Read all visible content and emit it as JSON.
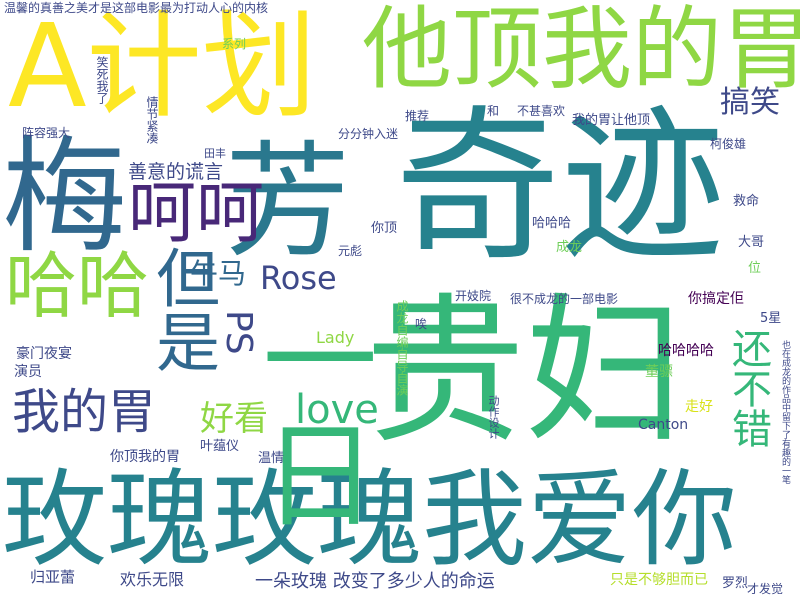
{
  "word_cloud": {
    "background": "#ffffff",
    "palette": [
      "#fde725",
      "#b5de2b",
      "#6ece58",
      "#35b779",
      "#1f9e89",
      "#26828e",
      "#31688e",
      "#3e4989",
      "#482878",
      "#440154"
    ],
    "words": [
      {
        "text": "奇迹",
        "color": "#26828e"
      },
      {
        "text": "贵妇",
        "color": "#35b779"
      },
      {
        "text": "玫瑰玫瑰我爱你",
        "color": "#26828e"
      },
      {
        "text": "梅",
        "color": "#31688e"
      },
      {
        "text": "A计划",
        "color": "#fde725"
      },
      {
        "text": "他顶我的胃",
        "color": "#8fd744"
      },
      {
        "text": "一日",
        "color": "#35b779"
      },
      {
        "text": "芳",
        "color": "#2a788e"
      },
      {
        "text": "呵呵",
        "color": "#482878"
      },
      {
        "text": "哈哈",
        "color": "#8fd744"
      },
      {
        "text": "我的胃",
        "color": "#3e4989"
      },
      {
        "text": "但是",
        "color": "#31688e"
      },
      {
        "text": "Rose",
        "color": "#3e4989"
      },
      {
        "text": "午马",
        "color": "#31688e"
      },
      {
        "text": "PS",
        "color": "#3e4989"
      },
      {
        "text": "love",
        "color": "#35b779"
      },
      {
        "text": "好看",
        "color": "#8fd744"
      },
      {
        "text": "还不错",
        "color": "#35b779"
      },
      {
        "text": "搞笑",
        "color": "#3e4989"
      },
      {
        "text": "善意的谎言",
        "color": "#3e4989"
      },
      {
        "text": "温馨的真善之美才是这部电影最为打动人心的内核",
        "color": "#3e4989"
      },
      {
        "text": "一朵玫瑰 改变了多少人的命运",
        "color": "#3e4989"
      },
      {
        "text": "只是不够胆而已",
        "color": "#b5de2b"
      },
      {
        "text": "罗烈",
        "color": "#3e4989"
      },
      {
        "text": "才发觉",
        "color": "#3e4989"
      },
      {
        "text": "欢乐无限",
        "color": "#3e4989"
      },
      {
        "text": "归亚蕾",
        "color": "#3e4989"
      },
      {
        "text": "你顶我的胃",
        "color": "#3e4989"
      },
      {
        "text": "叶蕴仪",
        "color": "#3e4989"
      },
      {
        "text": "温情",
        "color": "#3e4989"
      },
      {
        "text": "Canton",
        "color": "#3e4989"
      },
      {
        "text": "走好",
        "color": "#d8e219"
      },
      {
        "text": "董骠",
        "color": "#6ece58"
      },
      {
        "text": "哈哈哈哈",
        "color": "#440154"
      },
      {
        "text": "你搞定佢",
        "color": "#440154"
      },
      {
        "text": "5星",
        "color": "#3e4989"
      },
      {
        "text": "很不成龙的一部电影",
        "color": "#3e4989"
      },
      {
        "text": "开妓院",
        "color": "#3e4989"
      },
      {
        "text": "豪门夜宴",
        "color": "#3e4989"
      },
      {
        "text": "演员",
        "color": "#3e4989"
      },
      {
        "text": "Lady",
        "color": "#8fd744"
      },
      {
        "text": "元彪",
        "color": "#3e4989"
      },
      {
        "text": "你顶",
        "color": "#3e4989"
      },
      {
        "text": "哈哈哈",
        "color": "#3e4989"
      },
      {
        "text": "成龙",
        "color": "#6ece58"
      },
      {
        "text": "大哥",
        "color": "#3e4989"
      },
      {
        "text": "位",
        "color": "#6ece58"
      },
      {
        "text": "救命",
        "color": "#3e4989"
      },
      {
        "text": "柯俊雄",
        "color": "#3e4989"
      },
      {
        "text": "我的胃让他顶",
        "color": "#3e4989"
      },
      {
        "text": "不甚喜欢",
        "color": "#3e4989"
      },
      {
        "text": "分分钟入迷",
        "color": "#3e4989"
      },
      {
        "text": "推荐",
        "color": "#3e4989"
      },
      {
        "text": "和",
        "color": "#3e4989"
      },
      {
        "text": "唉",
        "color": "#3e4989"
      },
      {
        "text": "田丰",
        "color": "#3e4989"
      },
      {
        "text": "阵容强大",
        "color": "#3e4989"
      },
      {
        "text": "系列",
        "color": "#6ece58"
      },
      {
        "text": "笑死我了",
        "color": "#3e4989"
      },
      {
        "text": "情节紧凑",
        "color": "#3e4989"
      },
      {
        "text": "成龙自编自导自演",
        "color": "#6ece58"
      },
      {
        "text": "动作设计",
        "color": "#3e4989"
      },
      {
        "text": "也在成龙的作品中留下了有趣的一笔",
        "color": "#3e4989"
      }
    ]
  }
}
